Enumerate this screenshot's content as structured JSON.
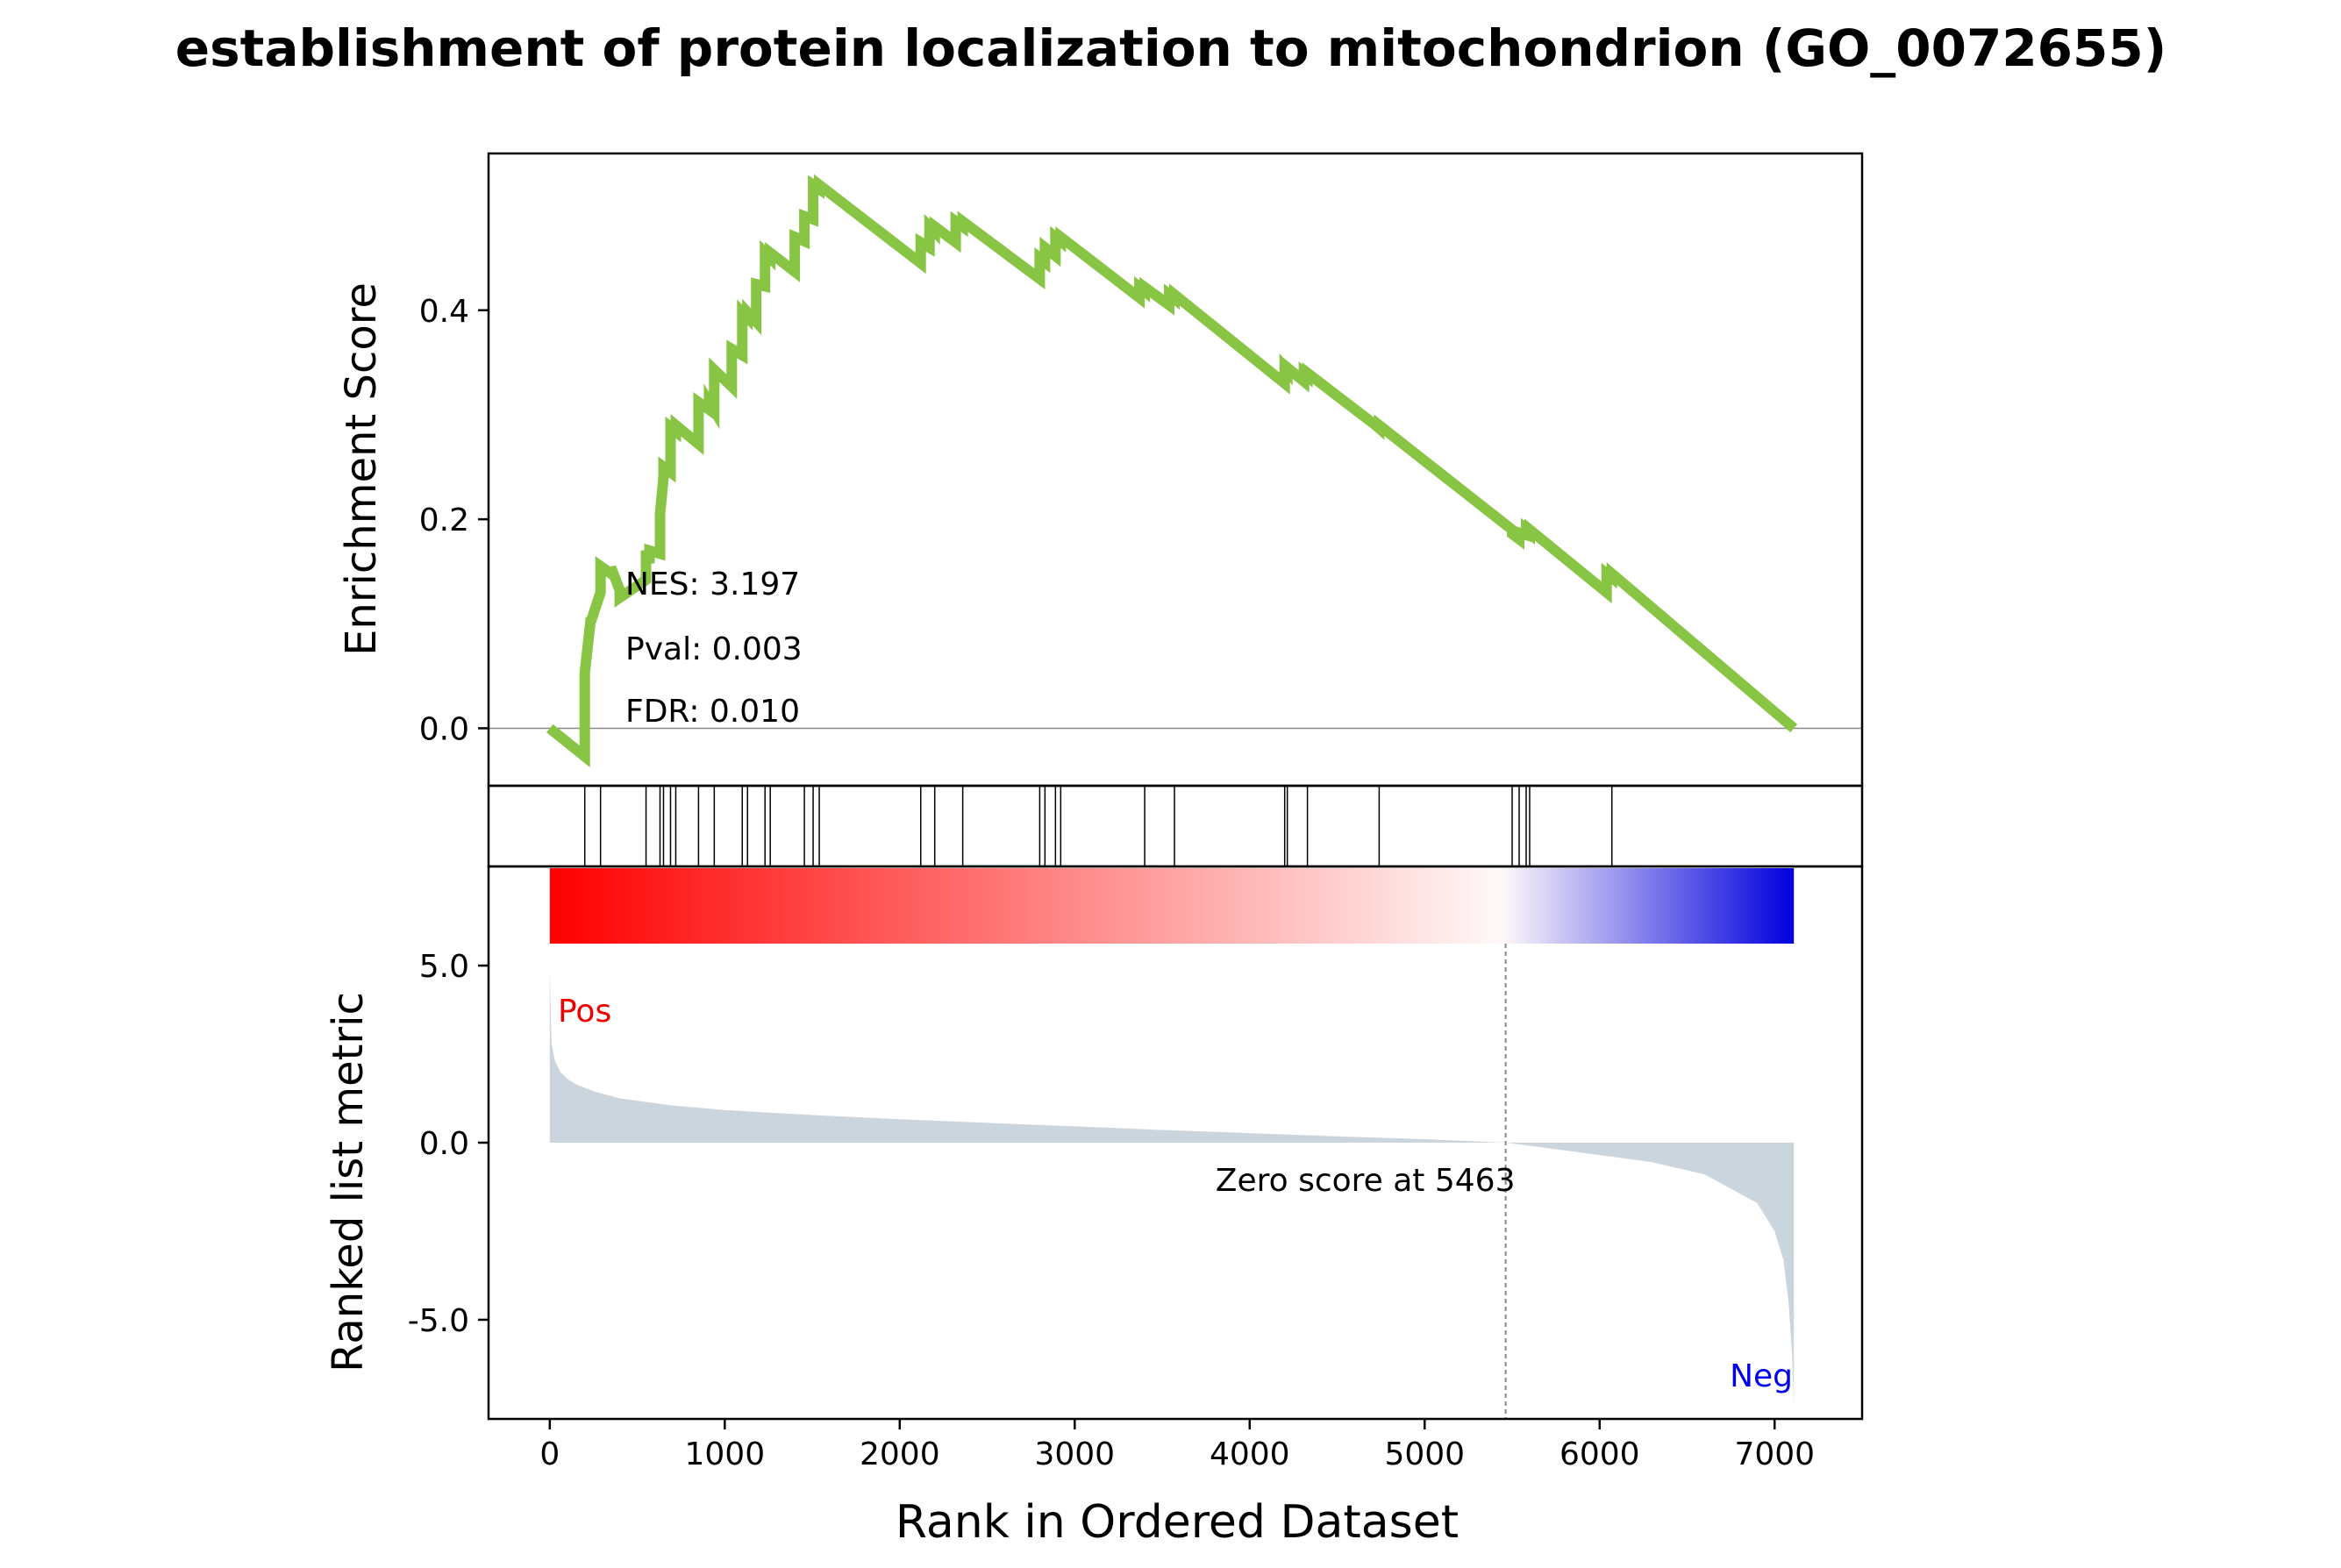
{
  "chart_data": {
    "type": "line",
    "title": "establishment of protein localization to mitochondrion (GO_0072655)",
    "xlabel": "Rank in Ordered Dataset",
    "x_ticks": [
      0,
      1000,
      2000,
      3000,
      4000,
      5000,
      6000,
      7000
    ],
    "xlim": [
      -350,
      7500
    ],
    "enrichment_panel": {
      "ylabel": "Enrichment Score",
      "y_ticks": [
        0.0,
        0.2,
        0.4
      ],
      "y_tick_labels": [
        "0.0",
        "0.2",
        "0.4"
      ],
      "ylim": [
        -0.055,
        0.55
      ],
      "line_color": "#88c544",
      "annotations": {
        "nes": "NES: 3.197",
        "pval": "Pval: 0.003",
        "fdr": "FDR: 0.010"
      },
      "series": [
        {
          "x": [
            0,
            200,
            200,
            235,
            235,
            290,
            290,
            350,
            350,
            400,
            400,
            550,
            550,
            570,
            570,
            630,
            630,
            650,
            650,
            690,
            690,
            720,
            720,
            850,
            850,
            910,
            910,
            940,
            940,
            1040,
            1040,
            1100,
            1100,
            1130,
            1130,
            1180,
            1180,
            1230,
            1230,
            1260,
            1260,
            1400,
            1400,
            1455,
            1455,
            1505,
            1505,
            1540,
            1540,
            2120,
            2120,
            2170,
            2170,
            2200,
            2200,
            2320,
            2320,
            2360,
            2360,
            2800,
            2800,
            2830,
            2830,
            2890,
            2890,
            2920,
            2920,
            3370,
            3370,
            3400,
            3400,
            3540,
            3540,
            3570,
            3570,
            4200,
            4200,
            4215,
            4215,
            4310,
            4310,
            4330,
            4330,
            4720,
            4720,
            4740,
            4740,
            5500,
            5500,
            5540,
            5540,
            5580,
            5580,
            5600,
            5600,
            6040,
            6040,
            6070,
            6070,
            7110
          ],
          "y": [
            0.0,
            -0.027,
            0.053,
            0.106,
            0.102,
            0.13,
            0.155,
            0.148,
            0.154,
            0.132,
            0.125,
            0.142,
            0.17,
            0.158,
            0.17,
            0.167,
            0.205,
            0.24,
            0.25,
            0.245,
            0.288,
            0.284,
            0.29,
            0.272,
            0.312,
            0.305,
            0.312,
            0.304,
            0.343,
            0.327,
            0.363,
            0.357,
            0.398,
            0.393,
            0.398,
            0.389,
            0.425,
            0.423,
            0.455,
            0.45,
            0.455,
            0.437,
            0.47,
            0.466,
            0.49,
            0.487,
            0.52,
            0.516,
            0.52,
            0.445,
            0.465,
            0.46,
            0.48,
            0.475,
            0.48,
            0.465,
            0.485,
            0.48,
            0.485,
            0.43,
            0.45,
            0.446,
            0.46,
            0.452,
            0.47,
            0.466,
            0.47,
            0.412,
            0.422,
            0.418,
            0.422,
            0.405,
            0.415,
            0.411,
            0.415,
            0.33,
            0.345,
            0.342,
            0.345,
            0.332,
            0.34,
            0.337,
            0.34,
            0.29,
            0.29,
            0.287,
            0.29,
            0.19,
            0.186,
            0.181,
            0.187,
            0.185,
            0.19,
            0.187,
            0.19,
            0.13,
            0.148,
            0.144,
            0.148,
            0.0
          ]
        }
      ]
    },
    "hits_panel": {
      "hit_ranks": [
        200,
        290,
        550,
        630,
        650,
        690,
        720,
        850,
        940,
        1100,
        1130,
        1230,
        1260,
        1455,
        1505,
        1540,
        2120,
        2200,
        2360,
        2800,
        2830,
        2890,
        2920,
        3400,
        3570,
        4200,
        4215,
        4330,
        4740,
        5500,
        5540,
        5580,
        5600,
        6070
      ]
    },
    "ranked_metric_panel": {
      "ylabel": "Ranked list metric",
      "y_ticks": [
        5.0,
        0.0,
        -5.0
      ],
      "y_tick_labels": [
        "5.0",
        "0.0",
        "-5.0"
      ],
      "ylim": [
        -7.8,
        7.8
      ],
      "fill_color": "#cbd5dd",
      "pos_label": "Pos",
      "neg_label": "Neg",
      "pos_color": "#ee0000",
      "neg_color": "#0000ee",
      "colorbar": [
        "#ff0000",
        "#fff9f9",
        "#0000dd"
      ],
      "zero_cross_rank": 5463,
      "zero_cross_label": "Zero score at 5463",
      "metric_curve": {
        "x": [
          0,
          10,
          30,
          60,
          100,
          150,
          250,
          400,
          700,
          1000,
          1500,
          2000,
          2500,
          3000,
          3500,
          4000,
          4500,
          5000,
          5463,
          5700,
          6000,
          6300,
          6600,
          6900,
          7000,
          7050,
          7080,
          7100,
          7110
        ],
        "y": [
          4.9,
          2.8,
          2.3,
          2.0,
          1.8,
          1.65,
          1.45,
          1.25,
          1.05,
          0.92,
          0.78,
          0.66,
          0.56,
          0.46,
          0.36,
          0.27,
          0.18,
          0.1,
          0.0,
          -0.15,
          -0.35,
          -0.55,
          -0.9,
          -1.7,
          -2.5,
          -3.3,
          -4.5,
          -6.0,
          -7.4
        ]
      }
    }
  }
}
